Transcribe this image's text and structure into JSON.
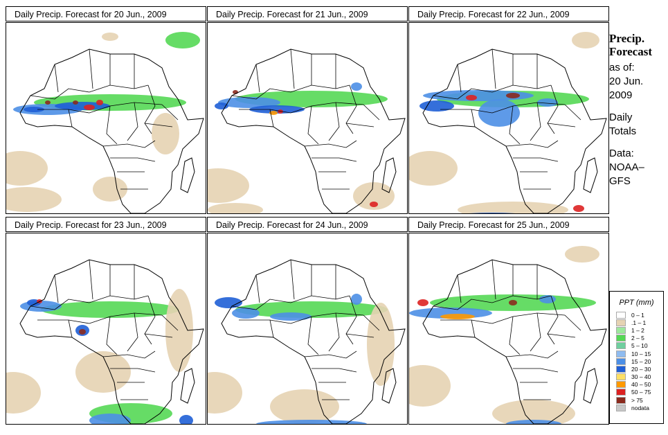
{
  "panels": [
    {
      "title": "Daily Precip. Forecast for  20 Jun., 2009"
    },
    {
      "title": "Daily Precip. Forecast for  21 Jun., 2009"
    },
    {
      "title": "Daily Precip. Forecast for  22 Jun., 2009"
    },
    {
      "title": "Daily Precip. Forecast for  23 Jun., 2009"
    },
    {
      "title": "Daily Precip. Forecast for  24 Jun., 2009"
    },
    {
      "title": "Daily Precip. Forecast for  25 Jun., 2009"
    }
  ],
  "sidebar": {
    "heading1": "Precip.",
    "heading2": "Forecast",
    "asof_label": "as of:",
    "date_line1": "20 Jun.",
    "date_line2": "2009",
    "totals_line1": "Daily",
    "totals_line2": "Totals",
    "data_line1": "Data:",
    "data_line2": "NOAA–",
    "data_line3": "GFS"
  },
  "legend": {
    "title": "PPT (mm)",
    "items": [
      {
        "label": "0 – 1",
        "color": "#ffffff"
      },
      {
        "label": ".1 – 1",
        "color": "#e6d3b3"
      },
      {
        "label": "1 – 2",
        "color": "#9de89d"
      },
      {
        "label": "2 – 5",
        "color": "#55d855"
      },
      {
        "label": "5 – 10",
        "color": "#6fcf9f"
      },
      {
        "label": "10 – 15",
        "color": "#8fbcf0"
      },
      {
        "label": "15 – 20",
        "color": "#4c8fe6"
      },
      {
        "label": "20 – 30",
        "color": "#1f5fd6"
      },
      {
        "label": "30 – 40",
        "color": "#ffe066"
      },
      {
        "label": "40 – 50",
        "color": "#ff9900"
      },
      {
        "label": "50 – 75",
        "color": "#dd2222"
      },
      {
        "label": "> 75",
        "color": "#8b2a1e"
      },
      {
        "label": "nodata",
        "color": "#c8c8c8"
      }
    ]
  }
}
